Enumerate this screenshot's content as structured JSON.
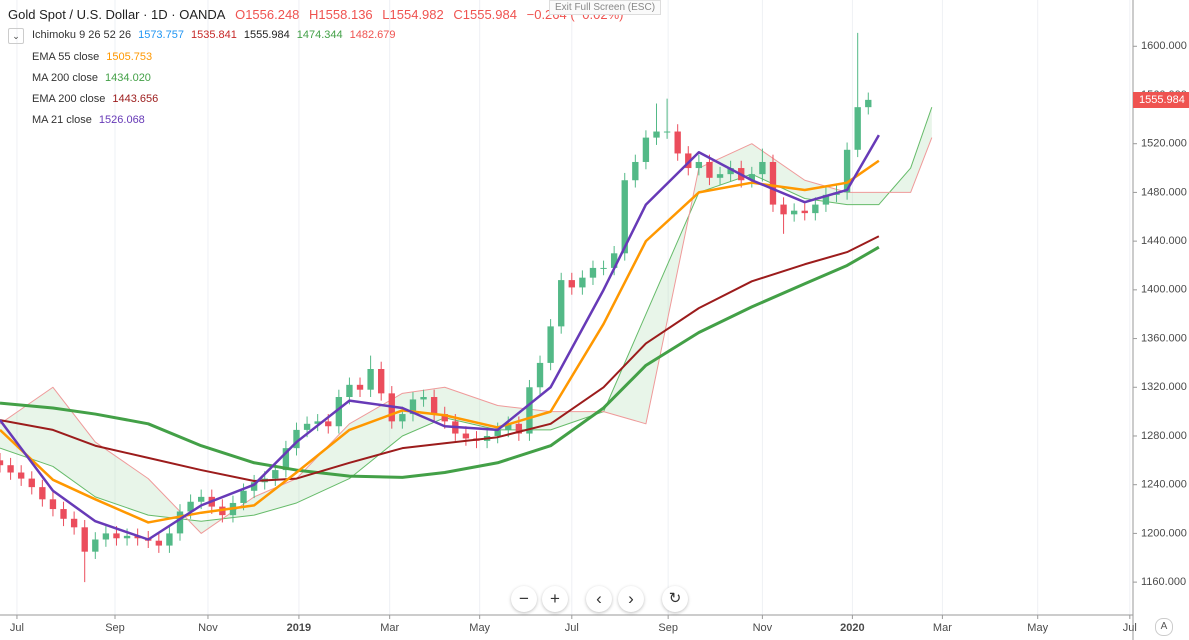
{
  "header": {
    "symbol": "Gold Spot / U.S. Dollar · 1D · OANDA",
    "open": "O1556.248",
    "high": "H1558.136",
    "low": "L1554.982",
    "close": "C1555.984",
    "change": "−0.264 (−0.02%)"
  },
  "indicators": [
    {
      "name": "Ichimoku 9 26 52 26",
      "values": [
        "1573.757",
        "1535.841",
        "1555.984",
        "1474.344",
        "1482.679"
      ],
      "colors": [
        "#2196f3",
        "#c62828",
        "#222222",
        "#43a047",
        "#ef5350"
      ]
    },
    {
      "name": "EMA 55 close",
      "values": [
        "1505.753"
      ],
      "colors": [
        "#ff9800"
      ]
    },
    {
      "name": "MA 200 close",
      "values": [
        "1434.020"
      ],
      "colors": [
        "#43a047"
      ]
    },
    {
      "name": "EMA 200 close",
      "values": [
        "1443.656"
      ],
      "colors": [
        "#9c1c1c"
      ]
    },
    {
      "name": "MA 21 close",
      "values": [
        "1526.068"
      ],
      "colors": [
        "#673ab7"
      ]
    }
  ],
  "exit_full_screen": "Exit Full Screen (ESC)",
  "last_price": "1555.984",
  "scale_mode": "A",
  "chart_data": {
    "type": "candlestick",
    "up_color": "#53b987",
    "down_color": "#eb4d5c",
    "x": [
      0,
      1,
      2,
      3,
      4,
      5,
      6,
      7,
      8,
      9,
      10,
      11,
      12,
      13,
      14,
      15,
      16,
      17,
      18,
      19,
      20,
      21,
      22,
      23,
      24,
      25,
      26,
      27,
      28,
      29,
      30,
      31,
      32,
      33,
      34,
      35,
      36,
      37,
      38,
      39,
      40,
      41,
      42,
      43,
      44,
      45,
      46,
      47,
      48,
      49,
      50,
      51,
      52,
      53,
      54,
      55,
      56,
      57,
      58,
      59,
      60,
      61,
      62,
      63,
      64,
      65,
      66,
      67,
      68,
      69,
      70,
      71,
      72,
      73,
      74,
      75,
      76,
      77,
      78,
      79,
      80,
      81,
      82
    ],
    "open": [
      1260,
      1256,
      1250,
      1245,
      1238,
      1228,
      1220,
      1212,
      1205,
      1185,
      1195,
      1200,
      1196,
      1198,
      1196,
      1194,
      1190,
      1200,
      1218,
      1226,
      1230,
      1222,
      1215,
      1225,
      1235,
      1242,
      1245,
      1252,
      1270,
      1285,
      1290,
      1292,
      1288,
      1312,
      1322,
      1318,
      1335,
      1315,
      1292,
      1298,
      1310,
      1312,
      1298,
      1292,
      1282,
      1278,
      1276,
      1280,
      1285,
      1290,
      1282,
      1320,
      1340,
      1370,
      1408,
      1402,
      1410,
      1418,
      1418,
      1430,
      1490,
      1505,
      1525,
      1530,
      1530,
      1512,
      1500,
      1505,
      1492,
      1495,
      1500,
      1490,
      1495,
      1505,
      1470,
      1462,
      1465,
      1463,
      1470,
      1478,
      1480,
      1515,
      1550
    ],
    "high": [
      1266,
      1262,
      1256,
      1251,
      1244,
      1234,
      1226,
      1218,
      1211,
      1201,
      1206,
      1206,
      1204,
      1204,
      1202,
      1200,
      1206,
      1224,
      1232,
      1236,
      1236,
      1228,
      1231,
      1241,
      1248,
      1251,
      1258,
      1276,
      1291,
      1296,
      1298,
      1298,
      1318,
      1328,
      1328,
      1346,
      1341,
      1321,
      1304,
      1316,
      1318,
      1318,
      1304,
      1298,
      1288,
      1284,
      1286,
      1291,
      1296,
      1296,
      1326,
      1346,
      1376,
      1414,
      1414,
      1416,
      1424,
      1424,
      1436,
      1496,
      1511,
      1531,
      1553,
      1557,
      1536,
      1518,
      1511,
      1511,
      1501,
      1506,
      1506,
      1501,
      1516,
      1511,
      1476,
      1471,
      1471,
      1476,
      1484,
      1486,
      1521,
      1611,
      1562
    ],
    "low": [
      1250,
      1244,
      1239,
      1232,
      1222,
      1214,
      1206,
      1199,
      1160,
      1179,
      1189,
      1190,
      1190,
      1190,
      1188,
      1184,
      1184,
      1194,
      1212,
      1220,
      1216,
      1209,
      1209,
      1219,
      1229,
      1236,
      1239,
      1246,
      1264,
      1279,
      1284,
      1282,
      1282,
      1306,
      1312,
      1312,
      1309,
      1286,
      1286,
      1292,
      1304,
      1292,
      1286,
      1276,
      1272,
      1270,
      1270,
      1274,
      1279,
      1276,
      1276,
      1314,
      1334,
      1364,
      1396,
      1396,
      1404,
      1412,
      1412,
      1424,
      1484,
      1499,
      1519,
      1524,
      1506,
      1494,
      1494,
      1486,
      1486,
      1489,
      1484,
      1484,
      1489,
      1464,
      1446,
      1456,
      1457,
      1457,
      1464,
      1472,
      1474,
      1509,
      1544
    ],
    "close": [
      1256,
      1250,
      1245,
      1238,
      1228,
      1220,
      1212,
      1205,
      1185,
      1195,
      1200,
      1196,
      1198,
      1196,
      1194,
      1190,
      1200,
      1218,
      1226,
      1230,
      1222,
      1215,
      1225,
      1235,
      1242,
      1245,
      1252,
      1270,
      1285,
      1290,
      1292,
      1288,
      1312,
      1322,
      1318,
      1335,
      1315,
      1292,
      1298,
      1310,
      1312,
      1298,
      1292,
      1282,
      1278,
      1276,
      1280,
      1285,
      1290,
      1282,
      1320,
      1340,
      1370,
      1408,
      1402,
      1410,
      1418,
      1418,
      1430,
      1490,
      1505,
      1525,
      1530,
      1530,
      1512,
      1500,
      1505,
      1492,
      1495,
      1500,
      1490,
      1495,
      1505,
      1470,
      1462,
      1465,
      1463,
      1470,
      1478,
      1480,
      1515,
      1550,
      1556
    ],
    "series": [
      {
        "color": "#43a047",
        "width": 3,
        "x": [
          0,
          5,
          9,
          14,
          19,
          24,
          28,
          33,
          38,
          42,
          47,
          52,
          57,
          61,
          66,
          71,
          76,
          80,
          83
        ],
        "values": [
          1307,
          1303,
          1298,
          1290,
          1272,
          1258,
          1252,
          1247,
          1246,
          1250,
          1258,
          1272,
          1303,
          1338,
          1365,
          1386,
          1405,
          1420,
          1435
        ]
      },
      {
        "color": "#9c1c1c",
        "width": 2,
        "x": [
          0,
          5,
          9,
          14,
          19,
          24,
          28,
          33,
          38,
          42,
          47,
          52,
          57,
          61,
          66,
          71,
          76,
          80,
          83
        ],
        "values": [
          1293,
          1285,
          1272,
          1262,
          1252,
          1243,
          1245,
          1258,
          1270,
          1274,
          1279,
          1290,
          1320,
          1356,
          1385,
          1407,
          1421,
          1431,
          1444
        ]
      },
      {
        "color": "#ff9800",
        "width": 2.5,
        "x": [
          0,
          5,
          9,
          14,
          19,
          24,
          28,
          33,
          38,
          42,
          47,
          52,
          57,
          61,
          66,
          71,
          76,
          80,
          83
        ],
        "values": [
          1285,
          1244,
          1228,
          1209,
          1217,
          1223,
          1250,
          1285,
          1301,
          1297,
          1287,
          1300,
          1372,
          1440,
          1480,
          1488,
          1482,
          1488,
          1506
        ]
      },
      {
        "color": "#673ab7",
        "width": 2.5,
        "x": [
          0,
          5,
          9,
          14,
          19,
          24,
          28,
          33,
          38,
          42,
          47,
          52,
          57,
          61,
          66,
          71,
          76,
          80,
          83
        ],
        "values": [
          1293,
          1235,
          1210,
          1195,
          1223,
          1240,
          1275,
          1309,
          1303,
          1288,
          1285,
          1320,
          1400,
          1470,
          1513,
          1490,
          1472,
          1482,
          1527
        ]
      }
    ],
    "cloud": {
      "fill": "#a5d6a7",
      "span_a_color": "#66bb6a",
      "span_b_color": "#ef9a9a",
      "x": [
        0,
        5,
        9,
        14,
        19,
        24,
        28,
        33,
        38,
        42,
        47,
        52,
        57,
        61,
        66,
        71,
        76,
        80,
        83,
        86,
        88
      ],
      "span_a": [
        1270,
        1255,
        1230,
        1215,
        1210,
        1215,
        1225,
        1245,
        1280,
        1295,
        1285,
        1285,
        1300,
        1380,
        1480,
        1495,
        1475,
        1470,
        1470,
        1500,
        1550
      ],
      "span_b": [
        1290,
        1320,
        1275,
        1245,
        1200,
        1230,
        1245,
        1290,
        1315,
        1320,
        1305,
        1300,
        1300,
        1290,
        1500,
        1520,
        1490,
        1480,
        1480,
        1480,
        1525
      ]
    },
    "xlim": [
      0,
      107
    ],
    "xticks": [
      {
        "value": 1.6,
        "label": "Jul"
      },
      {
        "value": 10.86,
        "label": "Sep"
      },
      {
        "value": 19.64,
        "label": "Nov"
      },
      {
        "value": 28.23,
        "label": "2019"
      },
      {
        "value": 36.8,
        "label": "Mar"
      },
      {
        "value": 45.3,
        "label": "May"
      },
      {
        "value": 54,
        "label": "Jul"
      },
      {
        "value": 63.1,
        "label": "Sep"
      },
      {
        "value": 72,
        "label": "Nov"
      },
      {
        "value": 80.5,
        "label": "2020"
      },
      {
        "value": 89,
        "label": "Mar"
      },
      {
        "value": 98,
        "label": "May"
      },
      {
        "value": 106.7,
        "label": "Jul"
      }
    ],
    "ylim": [
      1133,
      1638
    ],
    "yticks": [
      {
        "value": 1160,
        "label": "1160.000"
      },
      {
        "value": 1200,
        "label": "1200.000"
      },
      {
        "value": 1240,
        "label": "1240.000"
      },
      {
        "value": 1280,
        "label": "1280.000"
      },
      {
        "value": 1320,
        "label": "1320.000"
      },
      {
        "value": 1360,
        "label": "1360.000"
      },
      {
        "value": 1400,
        "label": "1400.000"
      },
      {
        "value": 1440,
        "label": "1440.000"
      },
      {
        "value": 1480,
        "label": "1480.000"
      },
      {
        "value": 1520,
        "label": "1520.000"
      },
      {
        "value": 1560,
        "label": "1560.000"
      },
      {
        "value": 1600,
        "label": "1600.000"
      }
    ],
    "grid": true
  }
}
